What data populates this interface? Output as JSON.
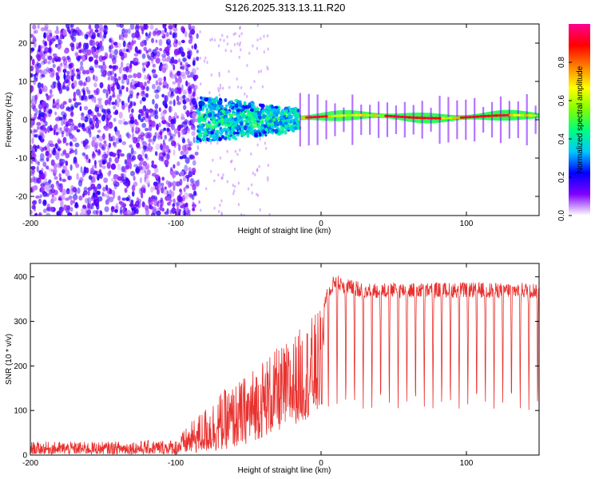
{
  "title": "S126.2025.313.13.11.R20",
  "chart_data": [
    {
      "type": "heatmap",
      "xlabel": "Height of straight line (km)",
      "ylabel": "Frequency (Hz)",
      "xlim": [
        -200,
        150
      ],
      "ylim": [
        -25,
        25
      ],
      "xticks": [
        -200,
        -100,
        0,
        100
      ],
      "xtick_labels": [
        "-200",
        "-100",
        "0",
        "100"
      ],
      "yticks": [
        -20,
        -10,
        0,
        10,
        20
      ],
      "ytick_labels": [
        "-20",
        "-10",
        "0",
        "10",
        "20"
      ],
      "colorbar": {
        "label": "Normalized spectral amplitude",
        "range": [
          0.0,
          1.0
        ],
        "ticks": [
          0.0,
          0.2,
          0.4,
          0.6,
          0.8
        ],
        "tick_labels": [
          "0.0",
          "0.2",
          "0.4",
          "0.6",
          "0.8"
        ],
        "colors": [
          "#ffffff",
          "#8000ff",
          "#0000ff",
          "#00c8ff",
          "#00ff80",
          "#80ff00",
          "#ffff00",
          "#ff8000",
          "#ff0000",
          "#ff0090"
        ]
      },
      "regions": [
        {
          "name": "noise",
          "x": [
            -200,
            -85
          ],
          "freq_spread": [
            -25,
            25
          ],
          "amplitude": [
            0.05,
            0.2
          ]
        },
        {
          "name": "transition",
          "x": [
            -85,
            -15
          ],
          "freq_spread": [
            -6,
            6
          ],
          "amplitude": [
            0.2,
            0.45
          ]
        },
        {
          "name": "signal-line",
          "x": [
            -15,
            150
          ],
          "center_freq": [
            0,
            2
          ],
          "amplitude": [
            0.3,
            1.0
          ]
        }
      ]
    },
    {
      "type": "line",
      "xlabel": "Height of straight line (km)",
      "ylabel": "SNR (10 * v/v)",
      "xlim": [
        -200,
        150
      ],
      "ylim": [
        0,
        430
      ],
      "xticks": [
        -200,
        -100,
        0,
        100
      ],
      "xtick_labels": [
        "-200",
        "-100",
        "0",
        "100"
      ],
      "yticks": [
        0,
        100,
        200,
        300,
        400
      ],
      "ytick_labels": [
        "0",
        "100",
        "200",
        "300",
        "400"
      ],
      "series": [
        {
          "name": "SNR",
          "color": "#e8312e",
          "envelope": {
            "x": [
              -200,
              -150,
              -100,
              -85,
              -70,
              -55,
              -40,
              -25,
              -10,
              0,
              5,
              10,
              15,
              30,
              50,
              100,
              150
            ],
            "low": [
              2,
              2,
              2,
              5,
              10,
              20,
              40,
              60,
              80,
              100,
              100,
              110,
              100,
              100,
              100,
              100,
              100
            ],
            "high": [
              30,
              30,
              35,
              90,
              140,
              170,
              220,
              250,
              300,
              330,
              380,
              400,
              390,
              380,
              380,
              380,
              380
            ]
          },
          "dip_spacing_km": 6,
          "dip_start_km": 2
        }
      ]
    }
  ]
}
